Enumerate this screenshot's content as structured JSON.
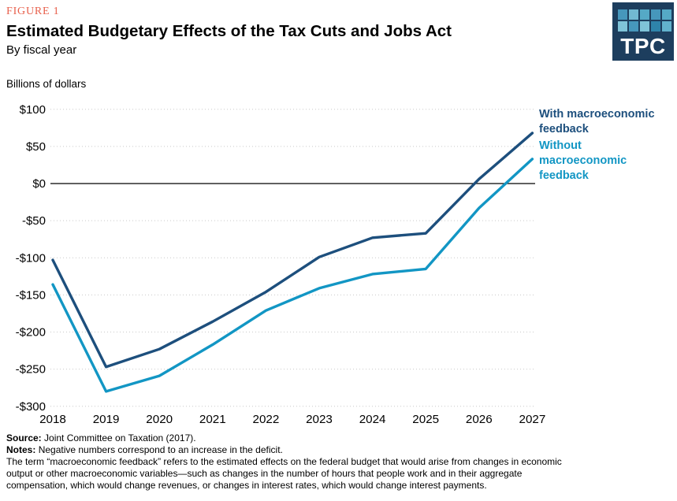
{
  "header": {
    "figure_label": "FIGURE 1",
    "title": "Estimated Budgetary Effects of the Tax Cuts and Jobs Act",
    "subtitle": "By fiscal year",
    "units_label": "Billions of dollars"
  },
  "logo": {
    "text": "TPC",
    "background": "#1d3e5e",
    "squares": [
      "#4697bc",
      "#72b9d2",
      "#55a9c6",
      "#4697bc",
      "#55a9c6",
      "#7fc3d8",
      "#4697bc",
      "#7fc3d8",
      "#2e84ab",
      "#62b2cd"
    ]
  },
  "chart_data": {
    "type": "line",
    "title": "Estimated Budgetary Effects of the Tax Cuts and Jobs Act",
    "subtitle": "By fiscal year",
    "ylabel": "Billions of dollars",
    "xlabel": "",
    "x": [
      2018,
      2019,
      2020,
      2021,
      2022,
      2023,
      2024,
      2025,
      2026,
      2027
    ],
    "series": [
      {
        "name": "With macroeconomic feedback",
        "color": "#1d4f7d",
        "values": [
          -103,
          -247,
          -223,
          -186,
          -146,
          -99,
          -73,
          -67,
          6,
          68
        ]
      },
      {
        "name": "Without macroeconomic feedback",
        "color": "#1296c4",
        "values": [
          -136,
          -280,
          -259,
          -217,
          -171,
          -141,
          -122,
          -115,
          -33,
          33
        ]
      }
    ],
    "ylim": [
      -300,
      100
    ],
    "y_tick_values": [
      100,
      50,
      0,
      -50,
      -100,
      -150,
      -200,
      -250,
      -300
    ],
    "y_tick_labels": [
      "$100",
      "$50",
      "$0",
      "-$50",
      "-$100",
      "-$150",
      "-$200",
      "-$250",
      "-$300"
    ],
    "grid": "horizontal-dotted",
    "gridline_color": "#c9c9c9",
    "zero_line_color": "#000000",
    "legend_position": "right",
    "legend": [
      {
        "lines": [
          "With macroeconomic",
          "feedback"
        ],
        "color": "#1d4f7d"
      },
      {
        "lines": [
          "Without",
          "macroeconomic",
          "feedback"
        ],
        "color": "#1296c4"
      }
    ]
  },
  "footer": {
    "source_label": "Source:",
    "source_text": "Joint Committee on Taxation (2017).",
    "notes_label": "Notes:",
    "notes_text": "Negative numbers correspond to an increase in the deficit.",
    "notes_lines": [
      "The term “macroeconomic feedback” refers to the estimated effects on the federal budget that would arise from changes in economic",
      "output or other macroeconomic variables—such as changes in the number of hours that people work and in their aggregate",
      "compensation, which would change revenues, or changes in interest rates, which would change interest payments."
    ]
  }
}
